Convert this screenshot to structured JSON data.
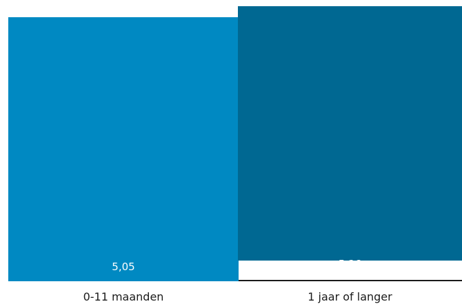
{
  "chart_data": {
    "type": "bar",
    "categories": [
      "0-11 maanden",
      "1 jaar of langer"
    ],
    "values": [
      5.05,
      5.26
    ],
    "value_labels": [
      "5,05",
      "5,26"
    ],
    "colors": [
      "#0089c2",
      "#006892"
    ],
    "title": "",
    "xlabel": "",
    "ylabel": "",
    "ylim": [
      0,
      5.26
    ],
    "grid": false,
    "legend": "none"
  }
}
